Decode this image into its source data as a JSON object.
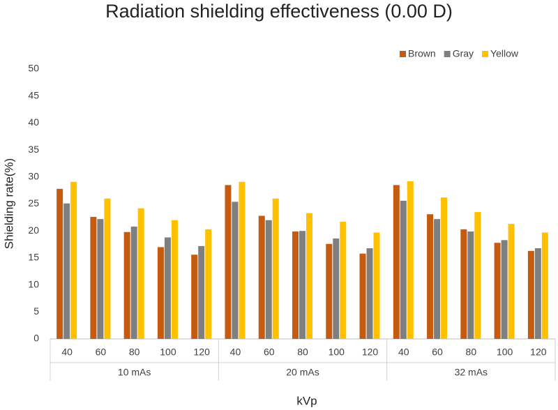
{
  "chart_data": {
    "type": "bar",
    "title": "Radiation shielding effectiveness (0.00 D)",
    "x_label": "kVp",
    "y_label": "Shielding rate(%)",
    "categories": [
      "40",
      "60",
      "80",
      "100",
      "120",
      "40",
      "60",
      "80",
      "100",
      "120",
      "40",
      "60",
      "80",
      "100",
      "120"
    ],
    "groups": [
      "10 mAs",
      "20 mAs",
      "32 mAs"
    ],
    "series": [
      {
        "name": "Brown",
        "color": "#c55a11",
        "values": [
          27.8,
          22.6,
          19.8,
          17.0,
          15.6,
          28.5,
          22.8,
          19.9,
          17.6,
          15.8,
          28.5,
          23.1,
          20.3,
          17.8,
          16.3
        ]
      },
      {
        "name": "Gray",
        "color": "#7f7f7f",
        "values": [
          25.1,
          22.2,
          20.8,
          18.8,
          17.2,
          25.4,
          22.0,
          20.0,
          18.6,
          16.8,
          25.6,
          22.2,
          19.9,
          18.3,
          16.8
        ]
      },
      {
        "name": "Yellow",
        "color": "#ffc000",
        "values": [
          29.1,
          26.0,
          24.2,
          22.0,
          20.3,
          29.1,
          26.0,
          23.3,
          21.7,
          19.7,
          29.2,
          26.2,
          23.5,
          21.3,
          19.7
        ]
      }
    ],
    "ylim": [
      0,
      50
    ],
    "yticks": [
      0,
      5,
      10,
      15,
      20,
      25,
      30,
      35,
      40,
      45,
      50
    ],
    "grid": false,
    "legend": "top-right"
  }
}
